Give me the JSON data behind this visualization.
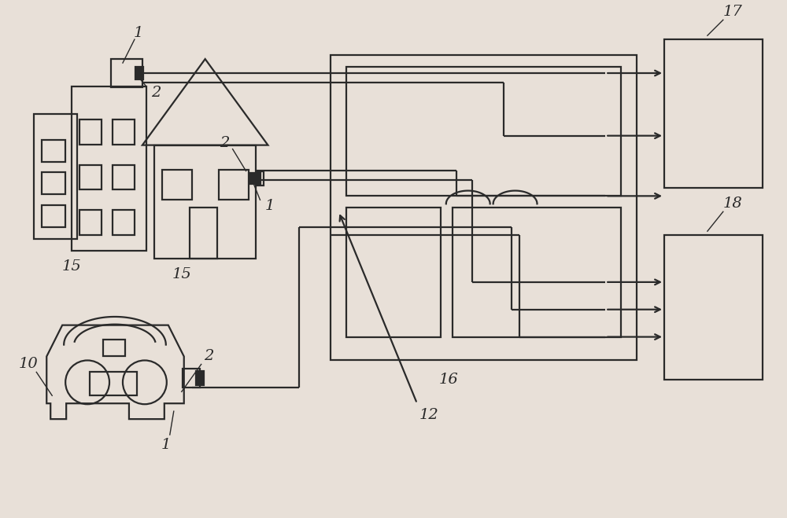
{
  "bg_color": "#e8e0d8",
  "line_color": "#2a2a2a",
  "line_width": 1.6,
  "label_fontsize": 14,
  "arrow_fontsize": 12,
  "figsize": [
    10.0,
    6.59
  ],
  "dpi": 100
}
